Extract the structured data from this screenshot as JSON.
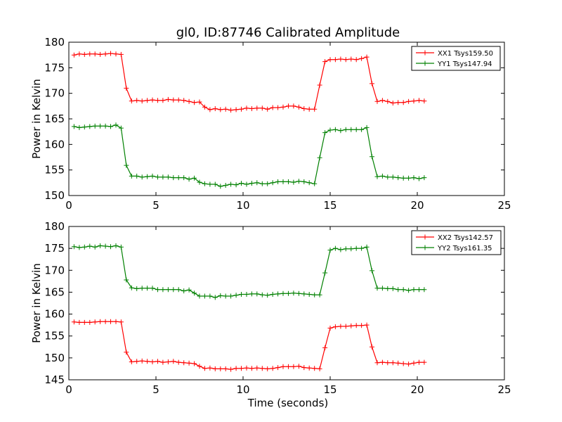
{
  "figure": {
    "title": "gl0, ID:87746 Calibrated Amplitude",
    "xlabel": "Time (seconds)"
  },
  "chart_data": [
    {
      "type": "line",
      "ylabel": "Power in Kelvin",
      "xlim": [
        0,
        25
      ],
      "ylim": [
        150,
        180
      ],
      "xticks": [
        0,
        5,
        10,
        15,
        20,
        25
      ],
      "yticks": [
        150,
        155,
        160,
        165,
        170,
        175,
        180
      ],
      "legend_position": "top-right",
      "x": [
        0.3,
        0.6,
        0.9,
        1.2,
        1.5,
        1.8,
        2.1,
        2.4,
        2.7,
        3.0,
        3.3,
        3.6,
        3.9,
        4.2,
        4.5,
        4.8,
        5.1,
        5.4,
        5.7,
        6.0,
        6.3,
        6.6,
        6.9,
        7.2,
        7.5,
        7.8,
        8.1,
        8.4,
        8.7,
        9.0,
        9.3,
        9.6,
        9.9,
        10.2,
        10.5,
        10.8,
        11.1,
        11.4,
        11.7,
        12.0,
        12.3,
        12.6,
        12.9,
        13.2,
        13.5,
        13.8,
        14.1,
        14.4,
        14.7,
        15.0,
        15.3,
        15.6,
        15.9,
        16.2,
        16.5,
        16.8,
        17.1,
        17.4,
        17.7,
        18.0,
        18.3,
        18.6,
        18.9,
        19.2,
        19.5,
        19.8,
        20.1,
        20.4
      ],
      "series": [
        {
          "name": "XX1 Tsys159.50",
          "color": "#ff0000",
          "values": [
            177.5,
            177.7,
            177.6,
            177.7,
            177.7,
            177.6,
            177.7,
            177.8,
            177.7,
            177.6,
            171.0,
            168.5,
            168.6,
            168.5,
            168.6,
            168.7,
            168.6,
            168.6,
            168.8,
            168.7,
            168.7,
            168.6,
            168.4,
            168.2,
            168.3,
            167.3,
            166.8,
            167.0,
            166.8,
            166.9,
            166.7,
            166.8,
            166.9,
            167.1,
            167.0,
            167.1,
            167.1,
            166.9,
            167.2,
            167.2,
            167.3,
            167.5,
            167.5,
            167.3,
            167.0,
            166.9,
            166.9,
            171.6,
            176.2,
            176.6,
            176.6,
            176.7,
            176.6,
            176.7,
            176.6,
            176.8,
            177.1,
            171.9,
            168.4,
            168.6,
            168.4,
            168.1,
            168.2,
            168.2,
            168.4,
            168.5,
            168.6,
            168.5
          ]
        },
        {
          "name": "YY1 Tsys147.94",
          "color": "#008000",
          "values": [
            163.5,
            163.3,
            163.4,
            163.5,
            163.6,
            163.6,
            163.6,
            163.5,
            163.8,
            163.2,
            155.9,
            153.8,
            153.8,
            153.6,
            153.7,
            153.8,
            153.6,
            153.6,
            153.6,
            153.5,
            153.5,
            153.5,
            153.2,
            153.4,
            152.6,
            152.3,
            152.2,
            152.2,
            151.8,
            152.0,
            152.2,
            152.1,
            152.4,
            152.2,
            152.4,
            152.5,
            152.3,
            152.3,
            152.5,
            152.7,
            152.7,
            152.7,
            152.6,
            152.8,
            152.7,
            152.5,
            152.3,
            157.4,
            162.3,
            162.8,
            162.9,
            162.7,
            162.9,
            162.9,
            162.9,
            162.9,
            163.3,
            157.6,
            153.7,
            153.8,
            153.6,
            153.6,
            153.5,
            153.4,
            153.4,
            153.5,
            153.3,
            153.5
          ]
        }
      ]
    },
    {
      "type": "line",
      "ylabel": "Power in Kelvin",
      "xlabel": "Time (seconds)",
      "xlim": [
        0,
        25
      ],
      "ylim": [
        145,
        180
      ],
      "xticks": [
        0,
        5,
        10,
        15,
        20,
        25
      ],
      "yticks": [
        145,
        150,
        155,
        160,
        165,
        170,
        175,
        180
      ],
      "legend_position": "top-right",
      "x": [
        0.3,
        0.6,
        0.9,
        1.2,
        1.5,
        1.8,
        2.1,
        2.4,
        2.7,
        3.0,
        3.3,
        3.6,
        3.9,
        4.2,
        4.5,
        4.8,
        5.1,
        5.4,
        5.7,
        6.0,
        6.3,
        6.6,
        6.9,
        7.2,
        7.5,
        7.8,
        8.1,
        8.4,
        8.7,
        9.0,
        9.3,
        9.6,
        9.9,
        10.2,
        10.5,
        10.8,
        11.1,
        11.4,
        11.7,
        12.0,
        12.3,
        12.6,
        12.9,
        13.2,
        13.5,
        13.8,
        14.1,
        14.4,
        14.7,
        15.0,
        15.3,
        15.6,
        15.9,
        16.2,
        16.5,
        16.8,
        17.1,
        17.4,
        17.7,
        18.0,
        18.3,
        18.6,
        18.9,
        19.2,
        19.5,
        19.8,
        20.1,
        20.4
      ],
      "series": [
        {
          "name": "XX2 Tsys142.57",
          "color": "#ff0000",
          "values": [
            158.2,
            158.1,
            158.1,
            158.1,
            158.2,
            158.3,
            158.3,
            158.3,
            158.3,
            158.2,
            151.3,
            149.1,
            149.2,
            149.3,
            149.2,
            149.1,
            149.2,
            149.0,
            149.1,
            149.2,
            149.0,
            148.9,
            148.8,
            148.7,
            148.1,
            147.6,
            147.7,
            147.5,
            147.5,
            147.5,
            147.4,
            147.6,
            147.6,
            147.7,
            147.6,
            147.7,
            147.6,
            147.5,
            147.6,
            147.8,
            148.0,
            148.0,
            148.0,
            148.1,
            147.8,
            147.7,
            147.6,
            147.5,
            152.3,
            156.8,
            157.1,
            157.2,
            157.2,
            157.3,
            157.4,
            157.4,
            157.5,
            152.5,
            148.9,
            149.0,
            148.9,
            148.9,
            148.8,
            148.7,
            148.6,
            148.8,
            149.0,
            149.0
          ]
        },
        {
          "name": "YY2 Tsys161.35",
          "color": "#008000",
          "values": [
            175.4,
            175.2,
            175.3,
            175.5,
            175.3,
            175.6,
            175.5,
            175.4,
            175.6,
            175.3,
            167.8,
            166.0,
            165.8,
            165.9,
            165.9,
            165.9,
            165.6,
            165.6,
            165.6,
            165.6,
            165.6,
            165.3,
            165.5,
            164.8,
            164.1,
            164.1,
            164.1,
            163.8,
            164.2,
            164.1,
            164.1,
            164.3,
            164.5,
            164.5,
            164.6,
            164.6,
            164.4,
            164.3,
            164.5,
            164.6,
            164.7,
            164.7,
            164.8,
            164.7,
            164.6,
            164.5,
            164.4,
            164.4,
            169.4,
            174.6,
            175.0,
            174.7,
            174.9,
            174.9,
            175.0,
            175.0,
            175.3,
            169.9,
            165.9,
            165.9,
            165.8,
            165.8,
            165.6,
            165.6,
            165.4,
            165.6,
            165.6,
            165.6
          ]
        }
      ]
    }
  ]
}
